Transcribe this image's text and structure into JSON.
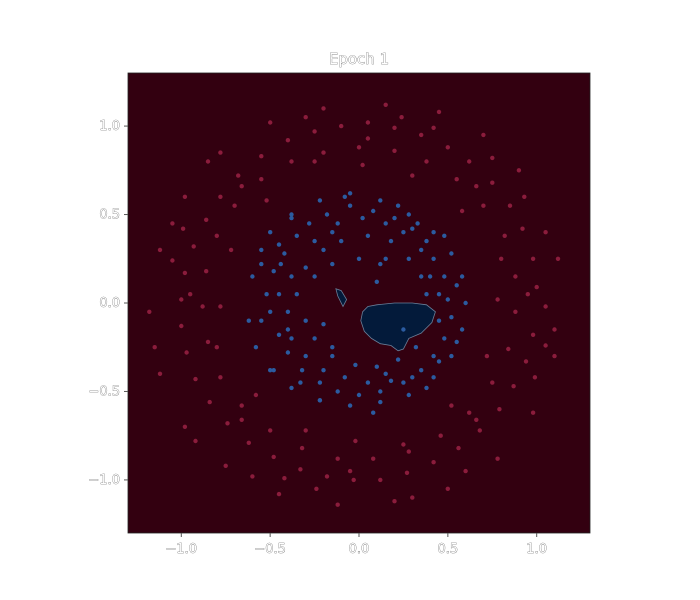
{
  "chart_data": {
    "type": "scatter",
    "title": "Epoch 1",
    "xlabel": "",
    "ylabel": "",
    "xlim": [
      -1.3,
      1.3
    ],
    "ylim": [
      -1.3,
      1.3
    ],
    "x_ticks": [
      -1.0,
      -0.5,
      0.0,
      0.5,
      1.0
    ],
    "y_ticks": [
      -1.0,
      -0.5,
      0.0,
      0.5,
      1.0
    ],
    "x_tick_labels": [
      "−1.0",
      "−0.5",
      "0.0",
      "0.5",
      "1.0"
    ],
    "y_tick_labels": [
      "−1.0",
      "−0.5",
      "0.0",
      "0.5",
      "1.0"
    ],
    "grid": false,
    "legend": "none",
    "background_region_color": "#330010",
    "decision_region_color": "#031a3a",
    "outer_class_color": "#8b1c3c",
    "inner_class_color": "#2b5ba0",
    "decision_regions": [
      [
        [
          0.02,
          -0.05
        ],
        [
          0.05,
          -0.02
        ],
        [
          0.1,
          -0.01
        ],
        [
          0.2,
          0.0
        ],
        [
          0.3,
          0.0
        ],
        [
          0.38,
          -0.01
        ],
        [
          0.43,
          -0.05
        ],
        [
          0.41,
          -0.11
        ],
        [
          0.35,
          -0.17
        ],
        [
          0.28,
          -0.2
        ],
        [
          0.25,
          -0.26
        ],
        [
          0.22,
          -0.27
        ],
        [
          0.18,
          -0.24
        ],
        [
          0.12,
          -0.23
        ],
        [
          0.07,
          -0.2
        ],
        [
          0.03,
          -0.16
        ],
        [
          0.01,
          -0.1
        ]
      ],
      [
        [
          -0.13,
          0.08
        ],
        [
          -0.1,
          0.07
        ],
        [
          -0.07,
          0.02
        ],
        [
          -0.09,
          -0.02
        ],
        [
          -0.12,
          0.04
        ]
      ]
    ],
    "series": [
      {
        "class": "outer",
        "points": [
          [
            1.0,
            0.09
          ],
          [
            0.98,
            0.25
          ],
          [
            0.92,
            0.42
          ],
          [
            0.85,
            0.55
          ],
          [
            0.75,
            0.68
          ],
          [
            0.62,
            0.8
          ],
          [
            0.5,
            0.88
          ],
          [
            0.35,
            0.95
          ],
          [
            0.2,
            0.99
          ],
          [
            0.05,
            1.02
          ],
          [
            -0.1,
            1.0
          ],
          [
            -0.25,
            0.97
          ],
          [
            -0.4,
            0.92
          ],
          [
            -0.55,
            0.83
          ],
          [
            -0.68,
            0.72
          ],
          [
            -0.78,
            0.6
          ],
          [
            -0.86,
            0.47
          ],
          [
            -0.93,
            0.32
          ],
          [
            -0.98,
            0.17
          ],
          [
            -1.0,
            0.02
          ],
          [
            -1.0,
            -0.13
          ],
          [
            -0.97,
            -0.28
          ],
          [
            -0.92,
            -0.43
          ],
          [
            -0.84,
            -0.56
          ],
          [
            -0.74,
            -0.68
          ],
          [
            -0.62,
            -0.79
          ],
          [
            -0.48,
            -0.87
          ],
          [
            -0.33,
            -0.94
          ],
          [
            -0.18,
            -0.98
          ],
          [
            -0.03,
            -1.0
          ],
          [
            0.12,
            -1.0
          ],
          [
            0.27,
            -0.96
          ],
          [
            0.42,
            -0.9
          ],
          [
            0.56,
            -0.82
          ],
          [
            0.68,
            -0.72
          ],
          [
            0.79,
            -0.6
          ],
          [
            0.87,
            -0.47
          ],
          [
            0.94,
            -0.33
          ],
          [
            0.98,
            -0.18
          ],
          [
            1.05,
            -0.02
          ],
          [
            1.12,
            0.25
          ],
          [
            1.1,
            -0.3
          ],
          [
            0.9,
            0.75
          ],
          [
            0.7,
            0.95
          ],
          [
            0.45,
            1.08
          ],
          [
            0.15,
            1.12
          ],
          [
            -0.2,
            1.1
          ],
          [
            -0.5,
            1.02
          ],
          [
            -0.78,
            0.85
          ],
          [
            -0.98,
            0.6
          ],
          [
            -1.12,
            0.3
          ],
          [
            -1.18,
            -0.05
          ],
          [
            -1.12,
            -0.4
          ],
          [
            -0.98,
            -0.7
          ],
          [
            -0.75,
            -0.92
          ],
          [
            -0.45,
            -1.08
          ],
          [
            -0.12,
            -1.14
          ],
          [
            0.2,
            -1.12
          ],
          [
            0.5,
            -1.05
          ],
          [
            0.78,
            -0.88
          ],
          [
            0.98,
            -0.62
          ],
          [
            1.1,
            -0.15
          ],
          [
            0.88,
            0.15
          ],
          [
            0.82,
            0.38
          ],
          [
            0.7,
            0.55
          ],
          [
            0.55,
            0.7
          ],
          [
            0.38,
            0.8
          ],
          [
            0.2,
            0.86
          ],
          [
            0.0,
            0.88
          ],
          [
            -0.2,
            0.85
          ],
          [
            -0.38,
            0.8
          ],
          [
            -0.55,
            0.7
          ],
          [
            -0.7,
            0.55
          ],
          [
            -0.8,
            0.38
          ],
          [
            -0.86,
            0.18
          ],
          [
            -0.88,
            -0.02
          ],
          [
            -0.85,
            -0.22
          ],
          [
            -0.78,
            -0.42
          ],
          [
            -0.66,
            -0.58
          ],
          [
            -0.5,
            -0.72
          ],
          [
            -0.32,
            -0.82
          ],
          [
            -0.12,
            -0.88
          ],
          [
            0.08,
            -0.88
          ],
          [
            0.28,
            -0.84
          ],
          [
            0.46,
            -0.75
          ],
          [
            0.62,
            -0.62
          ],
          [
            0.75,
            -0.45
          ],
          [
            0.84,
            -0.26
          ],
          [
            0.88,
            -0.05
          ],
          [
            0.93,
            0.6
          ],
          [
            -0.92,
            -0.78
          ],
          [
            -1.05,
            0.45
          ],
          [
            0.6,
            -0.95
          ],
          [
            -0.3,
            1.05
          ],
          [
            1.05,
            0.4
          ],
          [
            -0.6,
            -0.98
          ],
          [
            0.3,
            -1.1
          ],
          [
            -1.15,
            -0.25
          ],
          [
            0.75,
            0.82
          ],
          [
            -0.85,
            0.8
          ],
          [
            0.05,
            0.93
          ],
          [
            -0.05,
            -0.95
          ],
          [
            0.95,
            0.05
          ],
          [
            -0.95,
            0.05
          ],
          [
            0.66,
            0.66
          ],
          [
            -0.66,
            0.66
          ],
          [
            0.66,
            -0.66
          ],
          [
            -0.66,
            -0.66
          ],
          [
            0.42,
            0.99
          ],
          [
            -0.42,
            -0.99
          ],
          [
            0.99,
            -0.42
          ],
          [
            -0.99,
            0.42
          ],
          [
            0.24,
            1.05
          ],
          [
            -0.24,
            -1.05
          ],
          [
            1.05,
            -0.24
          ],
          [
            -1.05,
            0.24
          ],
          [
            0.8,
            0.25
          ],
          [
            -0.8,
            -0.25
          ],
          [
            0.25,
            -0.8
          ],
          [
            -0.25,
            0.8
          ],
          [
            0.72,
            -0.3
          ],
          [
            -0.72,
            0.3
          ],
          [
            0.3,
            0.72
          ],
          [
            -0.3,
            -0.72
          ],
          [
            0.78,
            0.02
          ],
          [
            -0.78,
            -0.02
          ],
          [
            0.02,
            0.78
          ],
          [
            -0.02,
            -0.78
          ],
          [
            0.58,
            0.52
          ],
          [
            -0.58,
            -0.52
          ],
          [
            0.52,
            -0.58
          ],
          [
            -0.52,
            0.58
          ]
        ]
      },
      {
        "class": "inner",
        "points": [
          [
            -0.35,
            0.38
          ],
          [
            -0.28,
            0.45
          ],
          [
            -0.18,
            0.5
          ],
          [
            -0.05,
            0.55
          ],
          [
            0.08,
            0.52
          ],
          [
            0.2,
            0.48
          ],
          [
            0.3,
            0.42
          ],
          [
            0.38,
            0.35
          ],
          [
            0.42,
            0.25
          ],
          [
            0.48,
            0.15
          ],
          [
            0.5,
            0.02
          ],
          [
            0.52,
            -0.08
          ],
          [
            0.48,
            -0.2
          ],
          [
            0.42,
            -0.3
          ],
          [
            0.35,
            -0.38
          ],
          [
            0.25,
            -0.45
          ],
          [
            0.12,
            -0.5
          ],
          [
            0.0,
            -0.52
          ],
          [
            -0.12,
            -0.5
          ],
          [
            -0.22,
            -0.45
          ],
          [
            -0.32,
            -0.38
          ],
          [
            -0.4,
            -0.28
          ],
          [
            -0.45,
            -0.18
          ],
          [
            -0.5,
            -0.05
          ],
          [
            -0.52,
            0.05
          ],
          [
            -0.48,
            0.18
          ],
          [
            -0.42,
            0.28
          ],
          [
            -0.55,
            0.3
          ],
          [
            -0.6,
            0.15
          ],
          [
            -0.62,
            -0.1
          ],
          [
            -0.58,
            -0.25
          ],
          [
            -0.5,
            -0.38
          ],
          [
            -0.38,
            -0.48
          ],
          [
            -0.22,
            -0.55
          ],
          [
            -0.05,
            -0.58
          ],
          [
            0.12,
            -0.56
          ],
          [
            0.28,
            -0.52
          ],
          [
            0.42,
            -0.42
          ],
          [
            0.52,
            -0.3
          ],
          [
            0.58,
            -0.15
          ],
          [
            0.6,
            0.0
          ],
          [
            0.58,
            0.15
          ],
          [
            0.52,
            0.28
          ],
          [
            0.42,
            0.4
          ],
          [
            0.28,
            0.5
          ],
          [
            0.12,
            0.58
          ],
          [
            -0.05,
            0.62
          ],
          [
            -0.22,
            0.58
          ],
          [
            -0.38,
            0.5
          ],
          [
            -0.5,
            0.4
          ],
          [
            -0.3,
            0.2
          ],
          [
            -0.2,
            0.3
          ],
          [
            -0.1,
            0.35
          ],
          [
            0.05,
            0.38
          ],
          [
            0.18,
            0.35
          ],
          [
            0.28,
            0.25
          ],
          [
            0.35,
            0.15
          ],
          [
            0.38,
            0.05
          ],
          [
            -0.35,
            0.05
          ],
          [
            -0.3,
            -0.1
          ],
          [
            -0.25,
            -0.2
          ],
          [
            -0.15,
            -0.3
          ],
          [
            -0.02,
            -0.35
          ],
          [
            0.1,
            -0.36
          ],
          [
            0.22,
            -0.32
          ],
          [
            0.32,
            -0.25
          ],
          [
            -0.4,
            -0.05
          ],
          [
            -0.38,
            0.15
          ],
          [
            -0.25,
            0.35
          ],
          [
            -0.12,
            0.45
          ],
          [
            0.02,
            0.48
          ],
          [
            0.15,
            0.45
          ],
          [
            0.25,
            0.4
          ],
          [
            0.35,
            0.3
          ],
          [
            0.45,
            0.05
          ],
          [
            0.45,
            -0.1
          ],
          [
            0.3,
            -0.42
          ],
          [
            0.18,
            -0.44
          ],
          [
            0.05,
            -0.45
          ],
          [
            -0.08,
            -0.42
          ],
          [
            -0.2,
            -0.38
          ],
          [
            -0.3,
            -0.3
          ],
          [
            -0.38,
            -0.2
          ],
          [
            -0.45,
            0.05
          ],
          [
            -0.44,
            0.22
          ],
          [
            -0.15,
            0.22
          ],
          [
            0.0,
            0.25
          ],
          [
            0.12,
            0.22
          ],
          [
            -0.2,
            -0.12
          ],
          [
            0.1,
            0.12
          ],
          [
            -0.55,
            -0.1
          ],
          [
            0.55,
            0.1
          ],
          [
            0.08,
            -0.62
          ],
          [
            -0.08,
            0.6
          ],
          [
            0.38,
            -0.48
          ],
          [
            -0.38,
            0.48
          ],
          [
            0.48,
            0.38
          ],
          [
            -0.48,
            -0.38
          ],
          [
            0.22,
            0.55
          ],
          [
            -0.22,
            -0.55
          ],
          [
            0.55,
            -0.22
          ],
          [
            -0.55,
            0.22
          ],
          [
            0.33,
            0.45
          ],
          [
            -0.33,
            -0.45
          ],
          [
            0.45,
            -0.33
          ],
          [
            -0.45,
            0.33
          ],
          [
            0.15,
            -0.4
          ],
          [
            -0.15,
            0.4
          ],
          [
            0.4,
            0.15
          ],
          [
            -0.4,
            -0.15
          ],
          [
            0.25,
            -0.15
          ],
          [
            -0.25,
            0.15
          ],
          [
            0.15,
            0.25
          ],
          [
            -0.15,
            -0.25
          ]
        ]
      }
    ]
  }
}
